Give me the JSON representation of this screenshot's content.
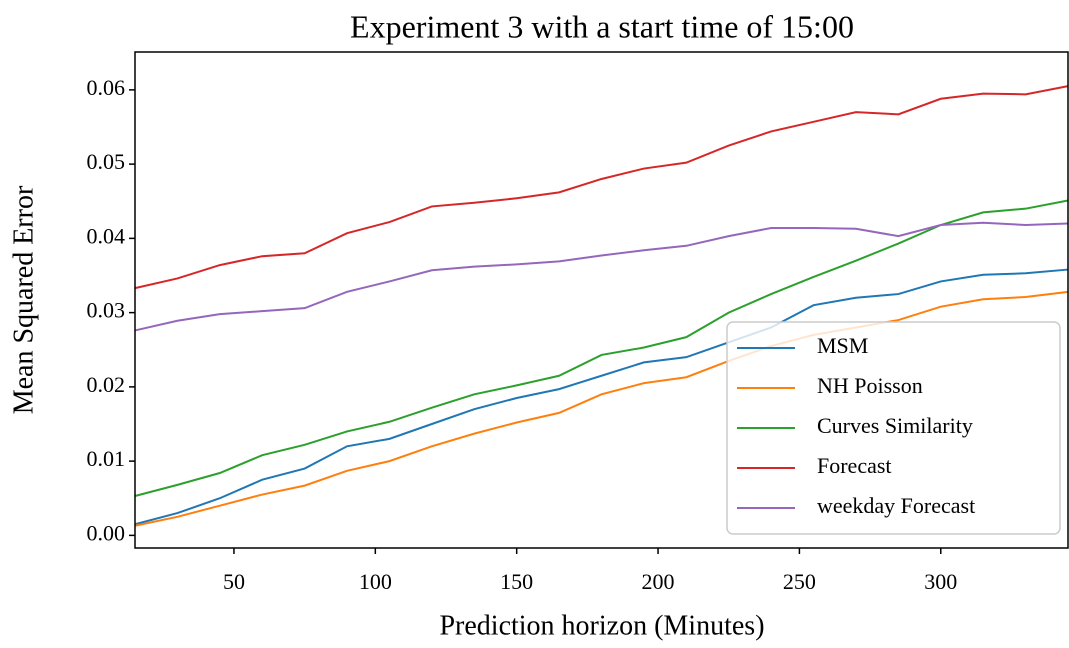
{
  "chart_data": {
    "type": "line",
    "title": "Experiment 3 with a start time of 15:00",
    "x_label": "Prediction horizon (Minutes)",
    "y_label": "Mean Squared Error",
    "x": [
      15,
      30,
      45,
      60,
      75,
      90,
      105,
      120,
      135,
      150,
      165,
      180,
      195,
      210,
      225,
      240,
      255,
      270,
      285,
      300,
      315,
      330,
      345
    ],
    "series": [
      {
        "name": "MSM",
        "color": "#1f77b4",
        "values": [
          0.0015,
          0.003,
          0.005,
          0.0075,
          0.009,
          0.012,
          0.013,
          0.015,
          0.017,
          0.0185,
          0.0197,
          0.0215,
          0.0233,
          0.024,
          0.026,
          0.028,
          0.031,
          0.032,
          0.0325,
          0.0342,
          0.0351,
          0.0353,
          0.0358
        ]
      },
      {
        "name": "NH Poisson",
        "color": "#ff7f0e",
        "values": [
          0.0013,
          0.0025,
          0.004,
          0.0055,
          0.0067,
          0.0087,
          0.01,
          0.012,
          0.0137,
          0.0152,
          0.0165,
          0.019,
          0.0205,
          0.0213,
          0.0235,
          0.0255,
          0.027,
          0.028,
          0.029,
          0.0308,
          0.0318,
          0.0321,
          0.0328
        ]
      },
      {
        "name": "Curves Similarity",
        "color": "#2ca02c",
        "values": [
          0.0053,
          0.0068,
          0.0084,
          0.0108,
          0.0122,
          0.014,
          0.0153,
          0.0172,
          0.019,
          0.0202,
          0.0215,
          0.0243,
          0.0253,
          0.0267,
          0.03,
          0.0325,
          0.0348,
          0.037,
          0.0393,
          0.0418,
          0.0435,
          0.044,
          0.0451
        ]
      },
      {
        "name": "Forecast",
        "color": "#d62728",
        "values": [
          0.0333,
          0.0346,
          0.0364,
          0.0376,
          0.038,
          0.0407,
          0.0422,
          0.0443,
          0.0448,
          0.0454,
          0.0462,
          0.048,
          0.0494,
          0.0502,
          0.0525,
          0.0544,
          0.0557,
          0.057,
          0.0567,
          0.0588,
          0.0595,
          0.0594,
          0.0605
        ]
      },
      {
        "name": "weekday Forecast",
        "color": "#9467bd",
        "values": [
          0.0276,
          0.0289,
          0.0298,
          0.0302,
          0.0306,
          0.0328,
          0.0342,
          0.0357,
          0.0362,
          0.0365,
          0.0369,
          0.0377,
          0.0384,
          0.039,
          0.0403,
          0.0414,
          0.0414,
          0.0413,
          0.0403,
          0.0418,
          0.0421,
          0.0418,
          0.042
        ]
      }
    ],
    "xlim": [
      15,
      345
    ],
    "ylim": [
      -0.0017,
      0.0651
    ],
    "xticks": [
      50,
      100,
      150,
      200,
      250,
      300
    ],
    "yticks": [
      {
        "value": 0,
        "label": "0.00"
      },
      0.01,
      0.02,
      0.03,
      0.04,
      0.05,
      0.06
    ],
    "legend": "lower right"
  }
}
